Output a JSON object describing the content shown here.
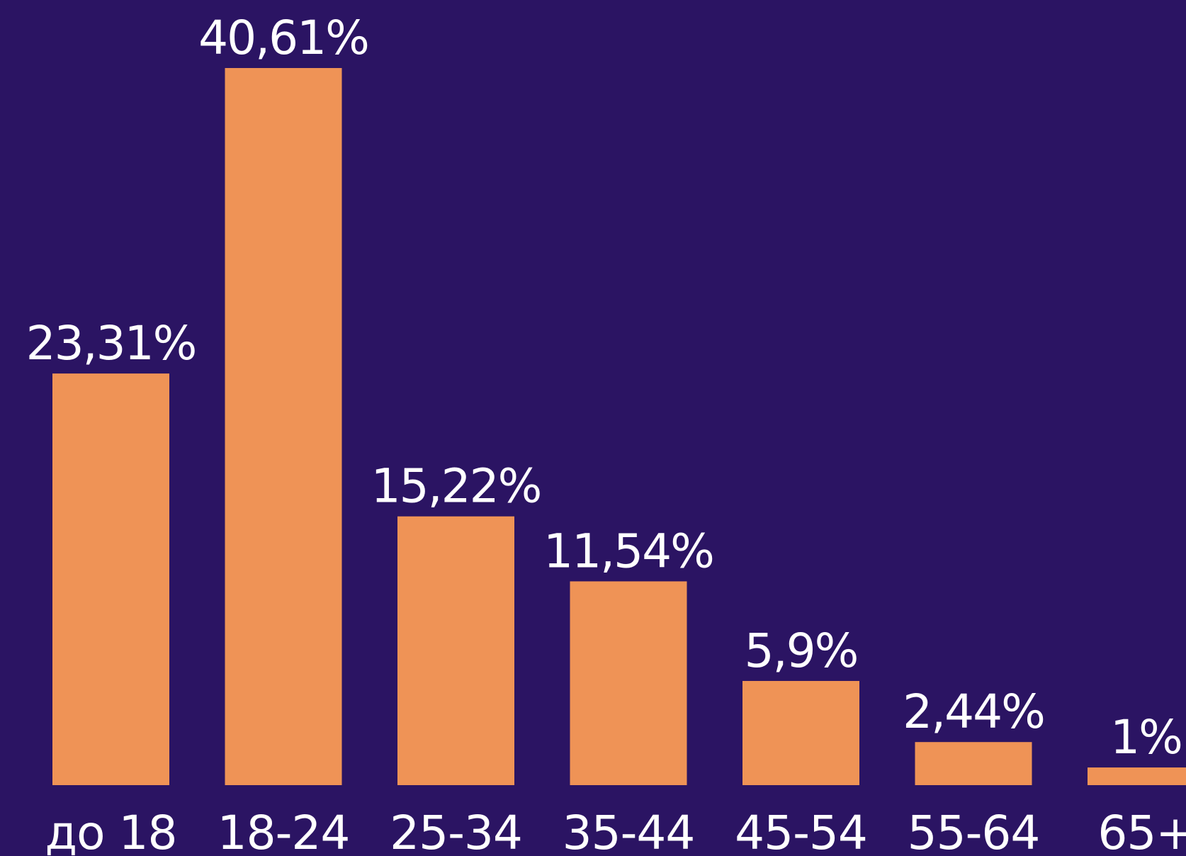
{
  "chart_data": {
    "type": "bar",
    "categories": [
      "до 18",
      "18-24",
      "25-34",
      "35-44",
      "45-54",
      "55-64",
      "65+"
    ],
    "values": [
      23.31,
      40.61,
      15.22,
      11.54,
      5.9,
      2.44,
      1
    ],
    "value_labels": [
      "23,31%",
      "40,61%",
      "15,22%",
      "11,54%",
      "5,9%",
      "2,44%",
      "1%"
    ],
    "title": "",
    "xlabel": "",
    "ylabel": "",
    "ylim": [
      0,
      40.61
    ],
    "grid": false,
    "legend": "none"
  },
  "colors": {
    "background": "#2b1463",
    "bar": "#ef9356",
    "text": "#ffffff"
  }
}
